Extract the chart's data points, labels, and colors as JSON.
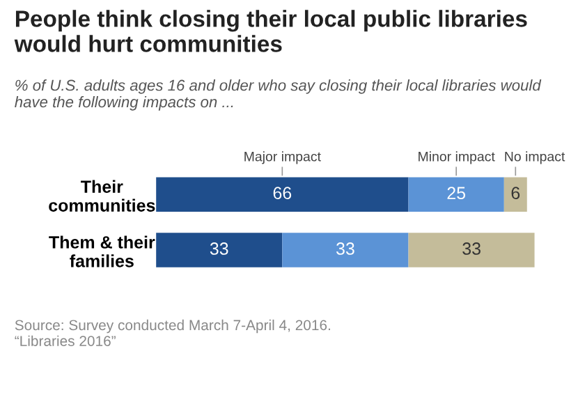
{
  "chart_data": {
    "type": "bar",
    "orientation": "horizontal",
    "stacked": true,
    "data_labels": true,
    "tick_labels": "y",
    "grid": false,
    "legend": "top",
    "title": "People think closing their local public libraries would hurt communities",
    "subtitle": "% of U.S. adults ages 16 and older who say closing their local libraries would have the following impacts on ...",
    "categories": [
      "Their\ncommunities",
      "Them & their\nfamilies"
    ],
    "series": [
      {
        "name": "Major impact",
        "color": "#1f4e8c",
        "values": [
          66,
          33
        ]
      },
      {
        "name": "Minor impact",
        "color": "#5b93d6",
        "values": [
          25,
          33
        ]
      },
      {
        "name": "No impact",
        "color": "#c4bc9a",
        "values": [
          6,
          33
        ]
      }
    ],
    "annotations": [
      "Source: Survey conducted March 7-April 4, 2016.",
      "“Libraries 2016”"
    ]
  }
}
